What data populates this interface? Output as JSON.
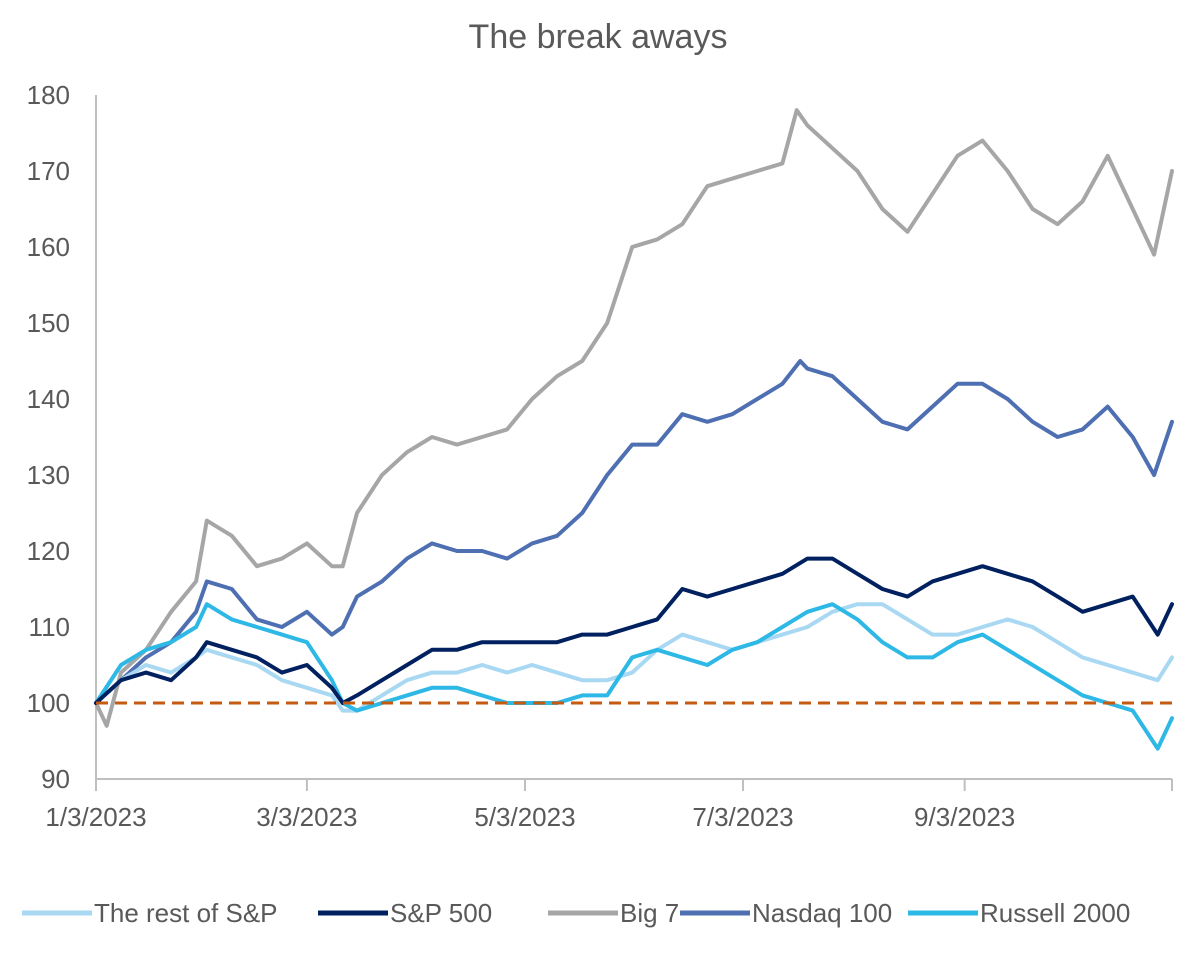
{
  "chart_data": {
    "type": "line",
    "title": "The break aways",
    "xlabel": "",
    "ylabel": "",
    "ylim": [
      90,
      180
    ],
    "yticks": [
      90,
      100,
      110,
      120,
      130,
      140,
      150,
      160,
      170,
      180
    ],
    "xlim": [
      "1/3/2023",
      "10/31/2023"
    ],
    "xticks": [
      "1/3/2023",
      "3/3/2023",
      "5/3/2023",
      "7/3/2023",
      "9/3/2023"
    ],
    "legend_position": "bottom",
    "grid": false,
    "reference_line": {
      "y": 100,
      "style": "dashed",
      "color": "#C55A11"
    },
    "series": [
      {
        "name": "The rest of S&P",
        "color": "#A9D8F2",
        "x": [
          "1/3/2023",
          "1/10/2023",
          "1/17/2023",
          "1/24/2023",
          "1/31/2023",
          "2/3/2023",
          "2/10/2023",
          "2/17/2023",
          "2/24/2023",
          "3/3/2023",
          "3/10/2023",
          "3/13/2023",
          "3/17/2023",
          "3/24/2023",
          "3/31/2023",
          "4/7/2023",
          "4/14/2023",
          "4/21/2023",
          "4/28/2023",
          "5/5/2023",
          "5/12/2023",
          "5/19/2023",
          "5/26/2023",
          "6/2/2023",
          "6/9/2023",
          "6/16/2023",
          "6/23/2023",
          "6/30/2023",
          "7/7/2023",
          "7/14/2023",
          "7/21/2023",
          "7/28/2023",
          "8/4/2023",
          "8/11/2023",
          "8/18/2023",
          "8/25/2023",
          "9/1/2023",
          "9/8/2023",
          "9/15/2023",
          "9/22/2023",
          "9/29/2023",
          "10/6/2023",
          "10/13/2023",
          "10/20/2023",
          "10/27/2023",
          "10/31/2023"
        ],
        "values": [
          100,
          103,
          105,
          104,
          106,
          107,
          106,
          105,
          103,
          102,
          101,
          99,
          99,
          101,
          103,
          104,
          104,
          105,
          104,
          105,
          104,
          103,
          103,
          104,
          107,
          109,
          108,
          107,
          108,
          109,
          110,
          112,
          113,
          113,
          111,
          109,
          109,
          110,
          111,
          110,
          108,
          106,
          105,
          104,
          103,
          106
        ]
      },
      {
        "name": "S&P 500",
        "color": "#002060",
        "x": [
          "1/3/2023",
          "1/10/2023",
          "1/17/2023",
          "1/24/2023",
          "1/31/2023",
          "2/3/2023",
          "2/10/2023",
          "2/17/2023",
          "2/24/2023",
          "3/3/2023",
          "3/10/2023",
          "3/13/2023",
          "3/17/2023",
          "3/24/2023",
          "3/31/2023",
          "4/7/2023",
          "4/14/2023",
          "4/21/2023",
          "4/28/2023",
          "5/5/2023",
          "5/12/2023",
          "5/19/2023",
          "5/26/2023",
          "6/2/2023",
          "6/9/2023",
          "6/16/2023",
          "6/23/2023",
          "6/30/2023",
          "7/7/2023",
          "7/14/2023",
          "7/21/2023",
          "7/28/2023",
          "8/4/2023",
          "8/11/2023",
          "8/18/2023",
          "8/25/2023",
          "9/1/2023",
          "9/8/2023",
          "9/15/2023",
          "9/22/2023",
          "9/29/2023",
          "10/6/2023",
          "10/13/2023",
          "10/20/2023",
          "10/27/2023",
          "10/31/2023"
        ],
        "values": [
          100,
          103,
          104,
          103,
          106,
          108,
          107,
          106,
          104,
          105,
          102,
          100,
          101,
          103,
          105,
          107,
          107,
          108,
          108,
          108,
          108,
          109,
          109,
          110,
          111,
          115,
          114,
          115,
          116,
          117,
          119,
          119,
          117,
          115,
          114,
          116,
          117,
          118,
          117,
          116,
          114,
          112,
          113,
          114,
          109,
          113
        ]
      },
      {
        "name": "Big 7",
        "color": "#A6A6A6",
        "x": [
          "1/3/2023",
          "1/6/2023",
          "1/10/2023",
          "1/17/2023",
          "1/24/2023",
          "1/31/2023",
          "2/3/2023",
          "2/10/2023",
          "2/17/2023",
          "2/24/2023",
          "3/3/2023",
          "3/10/2023",
          "3/13/2023",
          "3/17/2023",
          "3/24/2023",
          "3/31/2023",
          "4/7/2023",
          "4/14/2023",
          "4/21/2023",
          "4/28/2023",
          "5/5/2023",
          "5/12/2023",
          "5/19/2023",
          "5/26/2023",
          "6/2/2023",
          "6/9/2023",
          "6/16/2023",
          "6/23/2023",
          "6/30/2023",
          "7/7/2023",
          "7/14/2023",
          "7/18/2023",
          "7/21/2023",
          "7/28/2023",
          "8/4/2023",
          "8/11/2023",
          "8/18/2023",
          "8/25/2023",
          "9/1/2023",
          "9/8/2023",
          "9/15/2023",
          "9/22/2023",
          "9/29/2023",
          "10/6/2023",
          "10/13/2023",
          "10/20/2023",
          "10/26/2023",
          "10/31/2023"
        ],
        "values": [
          100,
          97,
          104,
          107,
          112,
          116,
          124,
          122,
          118,
          119,
          121,
          118,
          118,
          125,
          130,
          133,
          135,
          134,
          135,
          136,
          140,
          143,
          145,
          150,
          160,
          161,
          163,
          168,
          169,
          170,
          171,
          178,
          176,
          173,
          170,
          165,
          162,
          167,
          172,
          174,
          170,
          165,
          163,
          166,
          172,
          165,
          159,
          170
        ]
      },
      {
        "name": "Nasdaq 100",
        "color": "#4E6FB1",
        "x": [
          "1/3/2023",
          "1/10/2023",
          "1/17/2023",
          "1/24/2023",
          "1/31/2023",
          "2/3/2023",
          "2/10/2023",
          "2/17/2023",
          "2/24/2023",
          "3/3/2023",
          "3/10/2023",
          "3/13/2023",
          "3/17/2023",
          "3/24/2023",
          "3/31/2023",
          "4/7/2023",
          "4/14/2023",
          "4/21/2023",
          "4/28/2023",
          "5/5/2023",
          "5/12/2023",
          "5/19/2023",
          "5/26/2023",
          "6/2/2023",
          "6/9/2023",
          "6/16/2023",
          "6/23/2023",
          "6/30/2023",
          "7/7/2023",
          "7/14/2023",
          "7/19/2023",
          "7/21/2023",
          "7/28/2023",
          "8/4/2023",
          "8/11/2023",
          "8/18/2023",
          "8/25/2023",
          "9/1/2023",
          "9/8/2023",
          "9/15/2023",
          "9/22/2023",
          "9/29/2023",
          "10/6/2023",
          "10/13/2023",
          "10/20/2023",
          "10/26/2023",
          "10/31/2023"
        ],
        "values": [
          100,
          103,
          106,
          108,
          112,
          116,
          115,
          111,
          110,
          112,
          109,
          110,
          114,
          116,
          119,
          121,
          120,
          120,
          119,
          121,
          122,
          125,
          130,
          134,
          134,
          138,
          137,
          138,
          140,
          142,
          145,
          144,
          143,
          140,
          137,
          136,
          139,
          142,
          142,
          140,
          137,
          135,
          136,
          139,
          135,
          130,
          137
        ]
      },
      {
        "name": "Russell 2000",
        "color": "#2EB8E6",
        "x": [
          "1/3/2023",
          "1/10/2023",
          "1/17/2023",
          "1/24/2023",
          "1/31/2023",
          "2/3/2023",
          "2/10/2023",
          "2/17/2023",
          "2/24/2023",
          "3/3/2023",
          "3/10/2023",
          "3/13/2023",
          "3/17/2023",
          "3/24/2023",
          "3/31/2023",
          "4/7/2023",
          "4/14/2023",
          "4/21/2023",
          "4/28/2023",
          "5/5/2023",
          "5/12/2023",
          "5/19/2023",
          "5/26/2023",
          "6/2/2023",
          "6/9/2023",
          "6/16/2023",
          "6/23/2023",
          "6/30/2023",
          "7/7/2023",
          "7/14/2023",
          "7/21/2023",
          "7/28/2023",
          "8/4/2023",
          "8/11/2023",
          "8/18/2023",
          "8/25/2023",
          "9/1/2023",
          "9/8/2023",
          "9/15/2023",
          "9/22/2023",
          "9/29/2023",
          "10/6/2023",
          "10/13/2023",
          "10/20/2023",
          "10/27/2023",
          "10/31/2023"
        ],
        "values": [
          100,
          105,
          107,
          108,
          110,
          113,
          111,
          110,
          109,
          108,
          103,
          100,
          99,
          100,
          101,
          102,
          102,
          101,
          100,
          100,
          100,
          101,
          101,
          106,
          107,
          106,
          105,
          107,
          108,
          110,
          112,
          113,
          111,
          108,
          106,
          106,
          108,
          109,
          107,
          105,
          103,
          101,
          100,
          99,
          94,
          98
        ]
      }
    ]
  }
}
